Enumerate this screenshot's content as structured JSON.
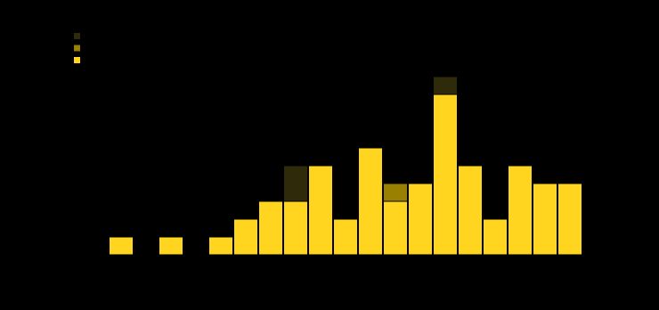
{
  "chart_data": {
    "type": "bar",
    "stacked": true,
    "categories": [
      null,
      null,
      null,
      null,
      null,
      null,
      null,
      null,
      null,
      null,
      null,
      null,
      null,
      null,
      null,
      null,
      null,
      null,
      null
    ],
    "series": [
      {
        "color": "#2e2a0a",
        "values": [
          0,
          0,
          0,
          0,
          0,
          0,
          0,
          2,
          0,
          0,
          0,
          0,
          0,
          1,
          0,
          0,
          0,
          0,
          0
        ]
      },
      {
        "color": "#9a8000",
        "values": [
          0,
          0,
          0,
          0,
          0,
          0,
          0,
          0,
          0,
          0,
          0,
          1,
          0,
          0,
          0,
          0,
          0,
          0,
          0
        ]
      },
      {
        "color": "#ffd520",
        "values": [
          1,
          0,
          1,
          0,
          1,
          2,
          3,
          3,
          5,
          2,
          6,
          3,
          4,
          9,
          5,
          2,
          5,
          4,
          4
        ]
      }
    ],
    "ylim": [
      0,
      10
    ]
  }
}
